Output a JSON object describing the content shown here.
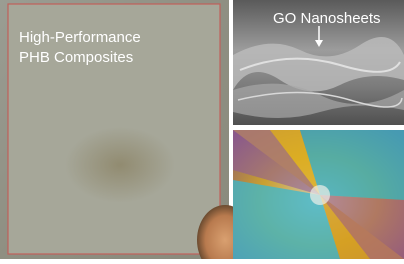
{
  "film_photo": {
    "title_line_1": "High-Performance",
    "title_line_2": "PHB Composites"
  },
  "sem_image": {
    "annotation": "GO Nanosheets"
  }
}
